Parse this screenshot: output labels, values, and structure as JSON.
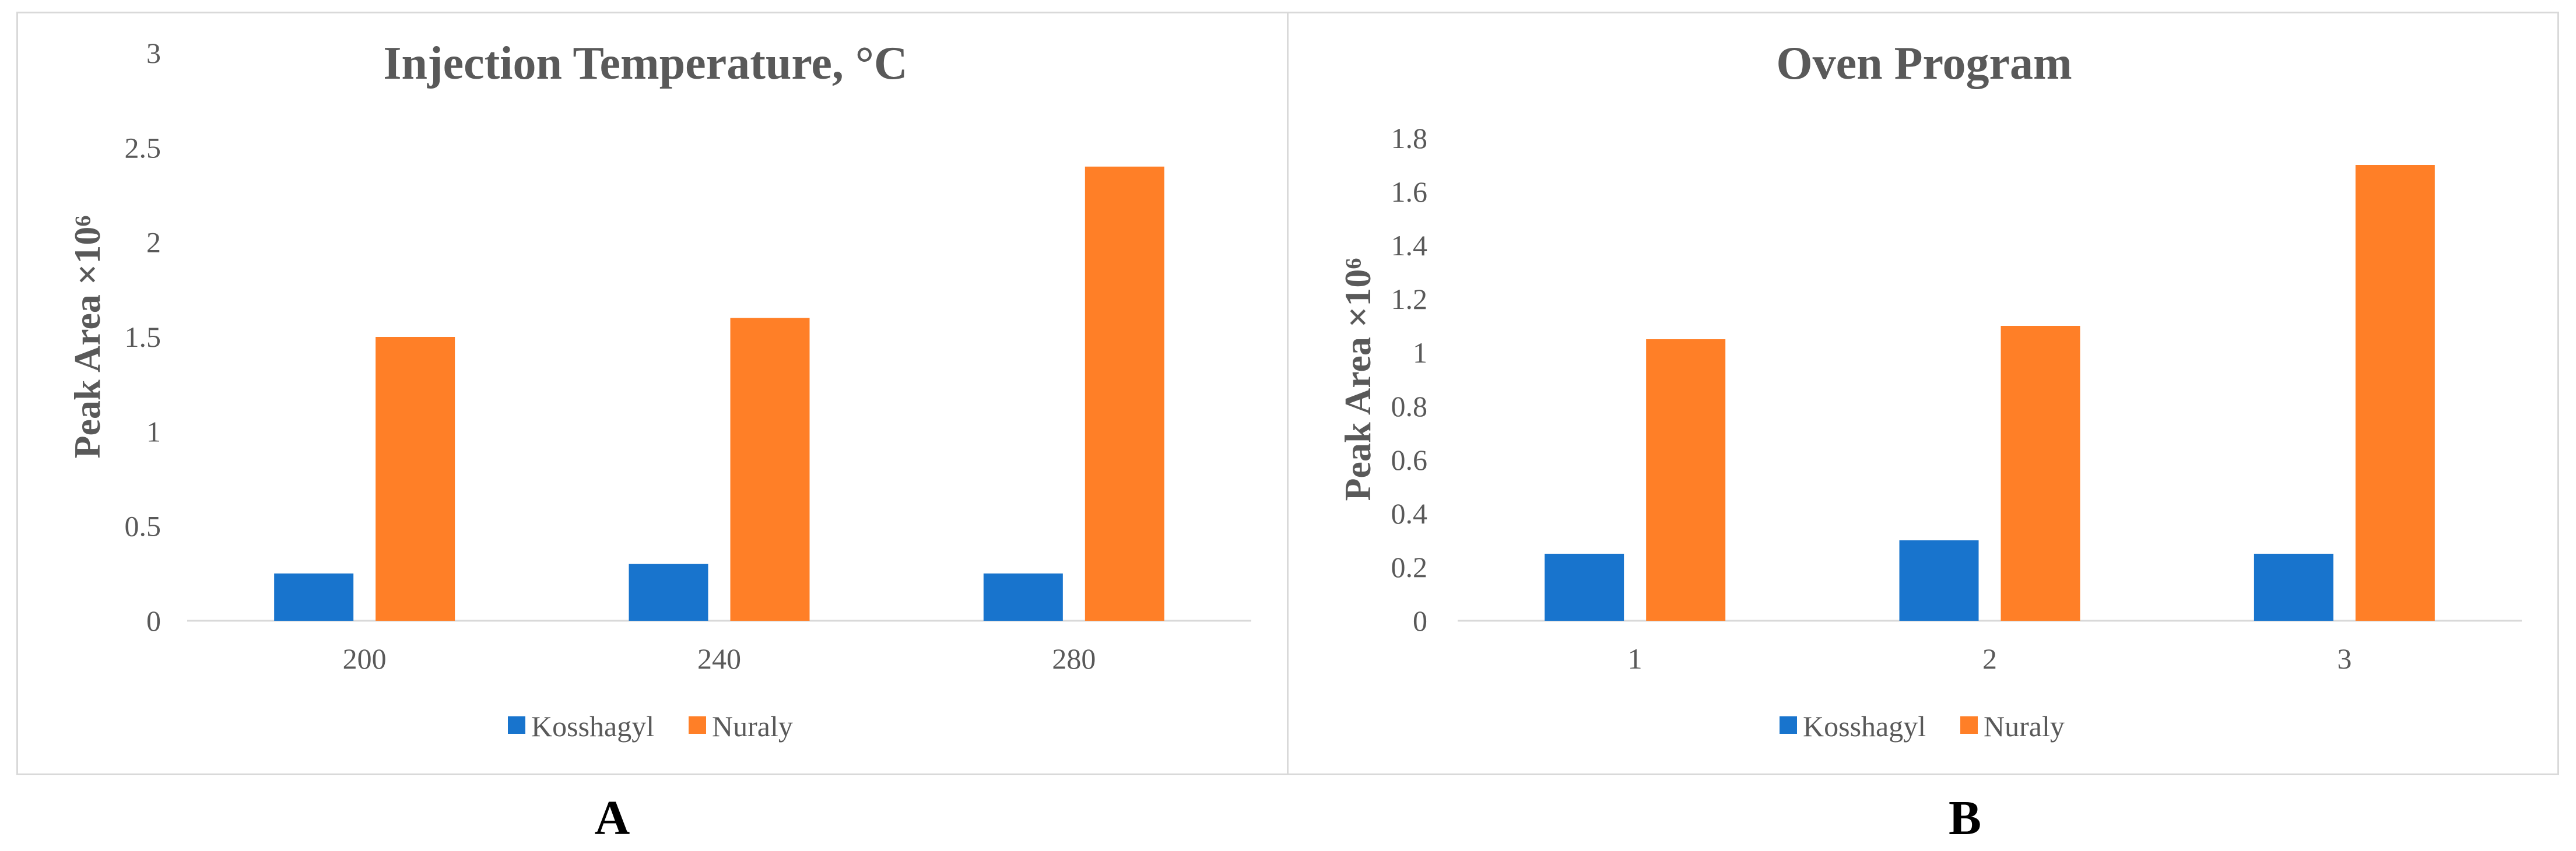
{
  "colors": {
    "kosshagyl": "#1874CD",
    "nuraly": "#FF7F27",
    "axis": "#d9d9d9",
    "text": "#595959"
  },
  "panel_labels": [
    "A",
    "B"
  ],
  "chart_data": [
    {
      "type": "bar",
      "title": "Injection Temperature, °C",
      "ylabel": "Peak Area ×10⁶",
      "xlabel": "",
      "categories": [
        "200",
        "240",
        "280"
      ],
      "series": [
        {
          "name": "Kosshagyl",
          "values": [
            0.25,
            0.3,
            0.25
          ]
        },
        {
          "name": "Nuraly",
          "values": [
            1.5,
            1.6,
            2.4
          ]
        }
      ],
      "ylim": [
        0,
        3
      ],
      "yticks": [
        0,
        0.5,
        1,
        1.5,
        2,
        2.5,
        3
      ],
      "ytick_labels": [
        "0",
        "0.5",
        "1",
        "1.5",
        "2",
        "2.5",
        "3"
      ],
      "grid": false,
      "legend": "bottom"
    },
    {
      "type": "bar",
      "title": "Oven Program",
      "ylabel": "Peak Area ×10⁶",
      "xlabel": "",
      "categories": [
        "1",
        "2",
        "3"
      ],
      "series": [
        {
          "name": "Kosshagyl",
          "values": [
            0.25,
            0.3,
            0.25
          ]
        },
        {
          "name": "Nuraly",
          "values": [
            1.05,
            1.1,
            1.7
          ]
        }
      ],
      "ylim": [
        0,
        1.8
      ],
      "yticks": [
        0,
        0.2,
        0.4,
        0.6,
        0.8,
        1,
        1.2,
        1.4,
        1.6,
        1.8
      ],
      "ytick_labels": [
        "0",
        "0.2",
        "0.4",
        "0.6",
        "0.8",
        "1",
        "1.2",
        "1.4",
        "1.6",
        "1.8"
      ],
      "grid": false,
      "legend": "bottom"
    }
  ]
}
